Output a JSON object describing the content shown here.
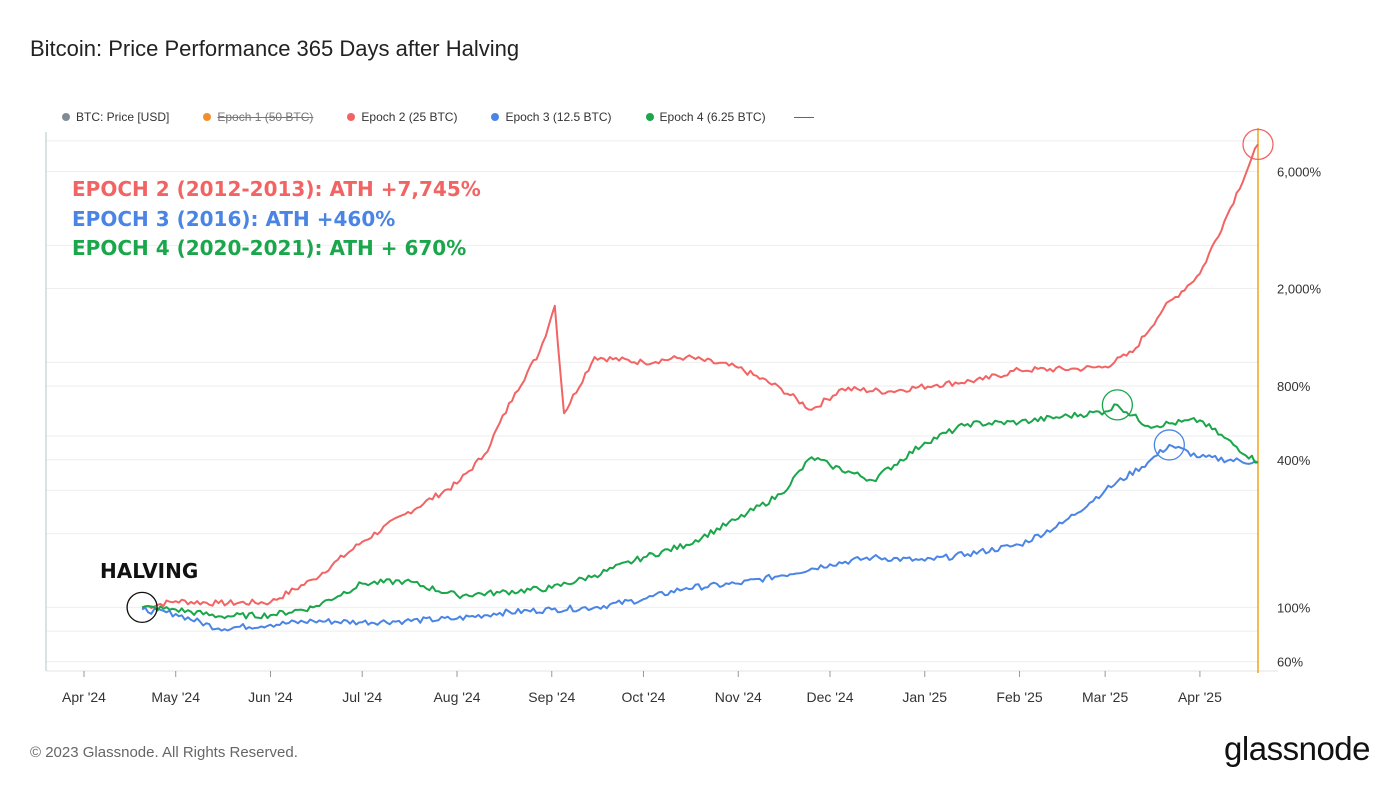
{
  "colors": {
    "epoch1": "#f28e2b",
    "epoch2": "#f26464",
    "epoch3": "#4a85e6",
    "epoch4": "#1aa64a",
    "price": "#7f8c93",
    "marker": "#f0a830"
  },
  "chart_data": {
    "type": "line",
    "title": "Bitcoin: Price Performance 365 Days after Halving",
    "legend": [
      {
        "name": "BTC: Price [USD]",
        "color": "#7f8c93",
        "struck": false
      },
      {
        "name": "Epoch 1 (50 BTC)",
        "color": "#f28e2b",
        "struck": true
      },
      {
        "name": "Epoch 2 (25 BTC)",
        "color": "#f26464",
        "struck": false
      },
      {
        "name": "Epoch 3 (12.5 BTC)",
        "color": "#4a85e6",
        "struck": false
      },
      {
        "name": "Epoch 4 (6.25 BTC)",
        "color": "#1aa64a",
        "struck": false
      }
    ],
    "legend_position": "top-left",
    "x_tick_labels": [
      "Apr '24",
      "May '24",
      "Jun '24",
      "Jul '24",
      "Aug '24",
      "Sep '24",
      "Oct '24",
      "Nov '24",
      "Dec '24",
      "Jan '25",
      "Feb '25",
      "Mar '25",
      "Apr '25"
    ],
    "y_axis_scale": "log",
    "y_tick_labels": [
      "6,000%",
      "2,000%",
      "800%",
      "400%",
      "100%",
      "60%"
    ],
    "y_ticks": [
      6000,
      2000,
      800,
      400,
      100,
      60
    ],
    "grid": true,
    "series": [
      {
        "name": "Epoch 2 (25 BTC)",
        "x": [
          "2024-04-20",
          "2024-05-01",
          "2024-05-15",
          "2024-06-01",
          "2024-06-15",
          "2024-07-01",
          "2024-07-15",
          "2024-08-01",
          "2024-08-10",
          "2024-08-20",
          "2024-08-28",
          "2024-09-02",
          "2024-09-05",
          "2024-09-15",
          "2024-10-01",
          "2024-10-15",
          "2024-11-01",
          "2024-11-15",
          "2024-11-25",
          "2024-12-05",
          "2024-12-20",
          "2025-01-05",
          "2025-01-20",
          "2025-02-01",
          "2025-02-20",
          "2025-03-01",
          "2025-03-10",
          "2025-03-20",
          "2025-04-01",
          "2025-04-10",
          "2025-04-20"
        ],
        "y": [
          100,
          106,
          104,
          105,
          130,
          185,
          240,
          320,
          420,
          750,
          1100,
          1700,
          620,
          1050,
          1000,
          1050,
          950,
          780,
          640,
          780,
          760,
          810,
          850,
          930,
          940,
          960,
          1100,
          1650,
          2300,
          4000,
          7745
        ]
      },
      {
        "name": "Epoch 3 (12.5 BTC)",
        "x": [
          "2024-04-20",
          "2024-05-01",
          "2024-05-15",
          "2024-06-01",
          "2024-06-15",
          "2024-07-01",
          "2024-07-15",
          "2024-08-01",
          "2024-08-15",
          "2024-09-01",
          "2024-09-15",
          "2024-10-01",
          "2024-10-15",
          "2024-11-01",
          "2024-11-15",
          "2024-12-01",
          "2024-12-15",
          "2025-01-01",
          "2025-01-15",
          "2025-02-01",
          "2025-02-15",
          "2025-03-01",
          "2025-03-15",
          "2025-03-22",
          "2025-04-01",
          "2025-04-20"
        ],
        "y": [
          98,
          94,
          82,
          85,
          88,
          87,
          88,
          90,
          95,
          98,
          100,
          108,
          120,
          125,
          135,
          150,
          160,
          155,
          165,
          180,
          220,
          300,
          390,
          460,
          410,
          390
        ]
      },
      {
        "name": "Epoch 4 (6.25 BTC)",
        "x": [
          "2024-04-20",
          "2024-05-01",
          "2024-05-15",
          "2024-06-01",
          "2024-06-15",
          "2024-07-01",
          "2024-07-15",
          "2024-08-01",
          "2024-08-15",
          "2024-09-01",
          "2024-09-15",
          "2024-10-01",
          "2024-10-15",
          "2024-11-01",
          "2024-11-15",
          "2024-11-25",
          "2024-12-01",
          "2024-12-15",
          "2025-01-01",
          "2025-01-15",
          "2025-02-01",
          "2025-02-15",
          "2025-03-01",
          "2025-03-05",
          "2025-03-15",
          "2025-04-01",
          "2025-04-20"
        ],
        "y": [
          100,
          98,
          92,
          93,
          100,
          125,
          128,
          112,
          115,
          120,
          135,
          160,
          180,
          230,
          290,
          410,
          380,
          330,
          470,
          560,
          570,
          600,
          630,
          670,
          550,
          580,
          390
        ]
      }
    ],
    "annotations": [
      {
        "text": "EPOCH 2 (2012-2013): ATH +7,745%",
        "color": "#f26464"
      },
      {
        "text": "EPOCH 3 (2016): ATH +460%",
        "color": "#4a85e6"
      },
      {
        "text": "EPOCH 4 (2020-2021): ATH + 670%",
        "color": "#1aa64a"
      },
      {
        "text": "HALVING",
        "color": "#111111"
      }
    ],
    "highlight_points": [
      {
        "label": "halving",
        "x": "2024-04-20",
        "y": 100,
        "color": "#111111"
      },
      {
        "label": "epoch2-ath",
        "x": "2025-04-20",
        "y": 7745,
        "color": "#f26464"
      },
      {
        "label": "epoch3-ath",
        "x": "2025-03-22",
        "y": 460,
        "color": "#4a85e6"
      },
      {
        "label": "epoch4-ath",
        "x": "2025-03-05",
        "y": 670,
        "color": "#1aa64a"
      }
    ],
    "current_date_marker": "2025-04-20"
  },
  "footer": {
    "copyright": "© 2023 Glassnode. All Rights Reserved.",
    "brand": "glassnode"
  }
}
